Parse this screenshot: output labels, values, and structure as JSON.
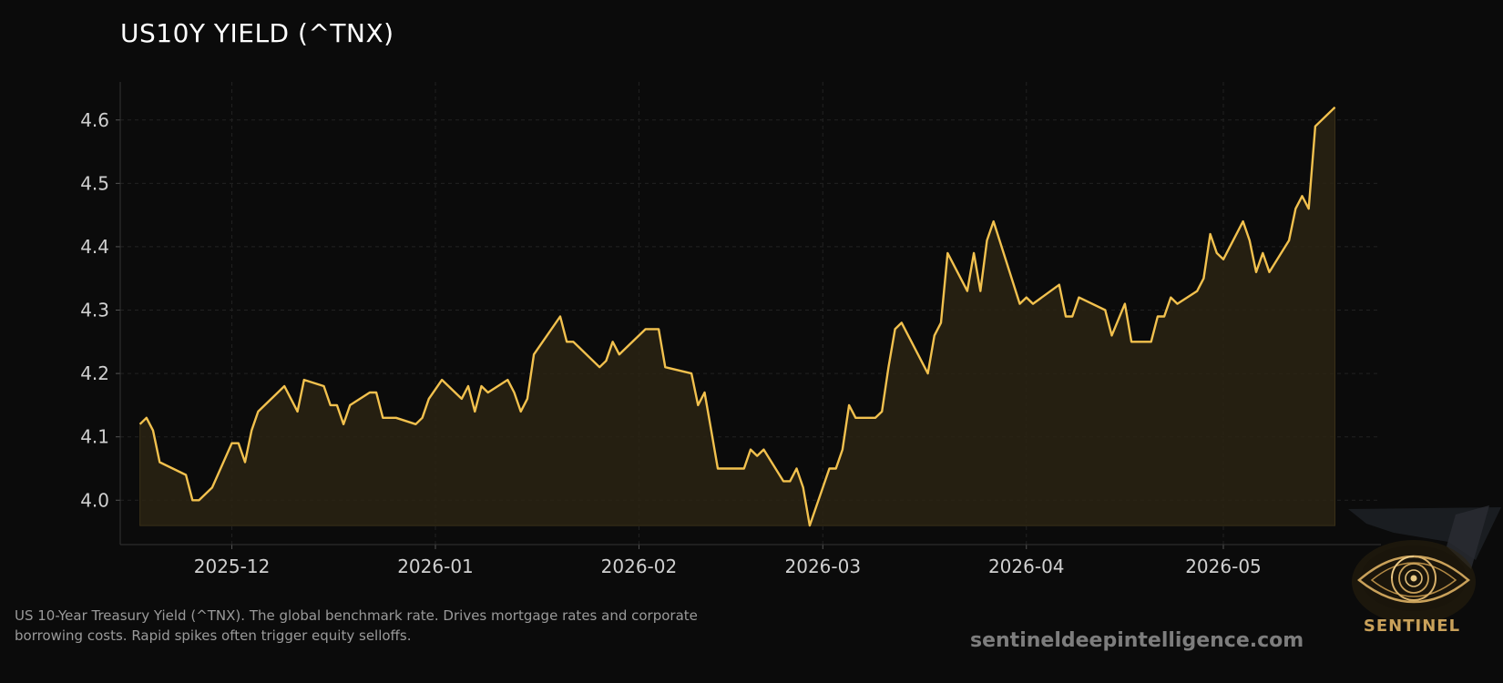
{
  "title": "US10Y YIELD (^TNX)",
  "caption_line1": "US 10-Year Treasury Yield (^TNX). The global benchmark rate. Drives mortgage rates and corporate",
  "caption_line2": "borrowing costs. Rapid spikes often trigger equity selloffs.",
  "website": "sentineldeepintelligence.com",
  "logo_text": "SENTINEL",
  "colors": {
    "background": "#0b0b0b",
    "line": "#f2c14e",
    "fill": "#2a2313",
    "axis_text": "#d0d0d0",
    "grid": "#222222"
  },
  "chart_data": {
    "type": "area",
    "title": "US10Y YIELD (^TNX)",
    "xlabel": "",
    "ylabel": "",
    "grid": true,
    "xlim": [
      "2025-11-14",
      "2026-05-25"
    ],
    "ylim": [
      3.93,
      4.66
    ],
    "fill_baseline": 3.96,
    "yticks": [
      4.0,
      4.1,
      4.2,
      4.3,
      4.4,
      4.5,
      4.6
    ],
    "xticks": [
      "2025-12-01",
      "2026-01-01",
      "2026-02-01",
      "2026-03-01",
      "2026-04-01",
      "2026-05-01"
    ],
    "xtick_labels": [
      "2025-12",
      "2026-01",
      "2026-02",
      "2026-03",
      "2026-04",
      "2026-05"
    ],
    "series": [
      {
        "points": [
          [
            "2025-11-17",
            4.12
          ],
          [
            "2025-11-18",
            4.13
          ],
          [
            "2025-11-19",
            4.11
          ],
          [
            "2025-11-20",
            4.06
          ],
          [
            "2025-11-24",
            4.04
          ],
          [
            "2025-11-25",
            4.0
          ],
          [
            "2025-11-26",
            4.0
          ],
          [
            "2025-11-28",
            4.02
          ],
          [
            "2025-12-01",
            4.09
          ],
          [
            "2025-12-02",
            4.09
          ],
          [
            "2025-12-03",
            4.06
          ],
          [
            "2025-12-04",
            4.11
          ],
          [
            "2025-12-05",
            4.14
          ],
          [
            "2025-12-08",
            4.17
          ],
          [
            "2025-12-09",
            4.18
          ],
          [
            "2025-12-10",
            4.16
          ],
          [
            "2025-12-11",
            4.14
          ],
          [
            "2025-12-12",
            4.19
          ],
          [
            "2025-12-15",
            4.18
          ],
          [
            "2025-12-16",
            4.15
          ],
          [
            "2025-12-17",
            4.15
          ],
          [
            "2025-12-18",
            4.12
          ],
          [
            "2025-12-19",
            4.15
          ],
          [
            "2025-12-22",
            4.17
          ],
          [
            "2025-12-23",
            4.17
          ],
          [
            "2025-12-24",
            4.13
          ],
          [
            "2025-12-26",
            4.13
          ],
          [
            "2025-12-29",
            4.12
          ],
          [
            "2025-12-30",
            4.13
          ],
          [
            "2025-12-31",
            4.16
          ],
          [
            "2026-01-02",
            4.19
          ],
          [
            "2026-01-05",
            4.16
          ],
          [
            "2026-01-06",
            4.18
          ],
          [
            "2026-01-07",
            4.14
          ],
          [
            "2026-01-08",
            4.18
          ],
          [
            "2026-01-09",
            4.17
          ],
          [
            "2026-01-12",
            4.19
          ],
          [
            "2026-01-13",
            4.17
          ],
          [
            "2026-01-14",
            4.14
          ],
          [
            "2026-01-15",
            4.16
          ],
          [
            "2026-01-16",
            4.23
          ],
          [
            "2026-01-20",
            4.29
          ],
          [
            "2026-01-21",
            4.25
          ],
          [
            "2026-01-22",
            4.25
          ],
          [
            "2026-01-26",
            4.21
          ],
          [
            "2026-01-27",
            4.22
          ],
          [
            "2026-01-28",
            4.25
          ],
          [
            "2026-01-29",
            4.23
          ],
          [
            "2026-02-02",
            4.27
          ],
          [
            "2026-02-03",
            4.27
          ],
          [
            "2026-02-04",
            4.27
          ],
          [
            "2026-02-05",
            4.21
          ],
          [
            "2026-02-09",
            4.2
          ],
          [
            "2026-02-10",
            4.15
          ],
          [
            "2026-02-11",
            4.17
          ],
          [
            "2026-02-12",
            4.11
          ],
          [
            "2026-02-13",
            4.05
          ],
          [
            "2026-02-17",
            4.05
          ],
          [
            "2026-02-18",
            4.08
          ],
          [
            "2026-02-19",
            4.07
          ],
          [
            "2026-02-20",
            4.08
          ],
          [
            "2026-02-23",
            4.03
          ],
          [
            "2026-02-24",
            4.03
          ],
          [
            "2026-02-25",
            4.05
          ],
          [
            "2026-02-26",
            4.02
          ],
          [
            "2026-02-27",
            3.96
          ],
          [
            "2026-03-02",
            4.05
          ],
          [
            "2026-03-03",
            4.05
          ],
          [
            "2026-03-04",
            4.08
          ],
          [
            "2026-03-05",
            4.15
          ],
          [
            "2026-03-06",
            4.13
          ],
          [
            "2026-03-09",
            4.13
          ],
          [
            "2026-03-10",
            4.14
          ],
          [
            "2026-03-11",
            4.21
          ],
          [
            "2026-03-12",
            4.27
          ],
          [
            "2026-03-13",
            4.28
          ],
          [
            "2026-03-17",
            4.2
          ],
          [
            "2026-03-18",
            4.26
          ],
          [
            "2026-03-19",
            4.28
          ],
          [
            "2026-03-20",
            4.39
          ],
          [
            "2026-03-23",
            4.33
          ],
          [
            "2026-03-24",
            4.39
          ],
          [
            "2026-03-25",
            4.33
          ],
          [
            "2026-03-26",
            4.41
          ],
          [
            "2026-03-27",
            4.44
          ],
          [
            "2026-03-31",
            4.31
          ],
          [
            "2026-04-01",
            4.32
          ],
          [
            "2026-04-02",
            4.31
          ],
          [
            "2026-04-06",
            4.34
          ],
          [
            "2026-04-07",
            4.29
          ],
          [
            "2026-04-08",
            4.29
          ],
          [
            "2026-04-09",
            4.32
          ],
          [
            "2026-04-13",
            4.3
          ],
          [
            "2026-04-14",
            4.26
          ],
          [
            "2026-04-16",
            4.31
          ],
          [
            "2026-04-17",
            4.25
          ],
          [
            "2026-04-20",
            4.25
          ],
          [
            "2026-04-21",
            4.29
          ],
          [
            "2026-04-22",
            4.29
          ],
          [
            "2026-04-23",
            4.32
          ],
          [
            "2026-04-24",
            4.31
          ],
          [
            "2026-04-27",
            4.33
          ],
          [
            "2026-04-28",
            4.35
          ],
          [
            "2026-04-29",
            4.42
          ],
          [
            "2026-04-30",
            4.39
          ],
          [
            "2026-05-01",
            4.38
          ],
          [
            "2026-05-04",
            4.44
          ],
          [
            "2026-05-05",
            4.41
          ],
          [
            "2026-05-06",
            4.36
          ],
          [
            "2026-05-07",
            4.39
          ],
          [
            "2026-05-08",
            4.36
          ],
          [
            "2026-05-11",
            4.41
          ],
          [
            "2026-05-12",
            4.46
          ],
          [
            "2026-05-13",
            4.48
          ],
          [
            "2026-05-14",
            4.46
          ],
          [
            "2026-05-15",
            4.59
          ],
          [
            "2026-05-18",
            4.62
          ]
        ]
      }
    ]
  }
}
